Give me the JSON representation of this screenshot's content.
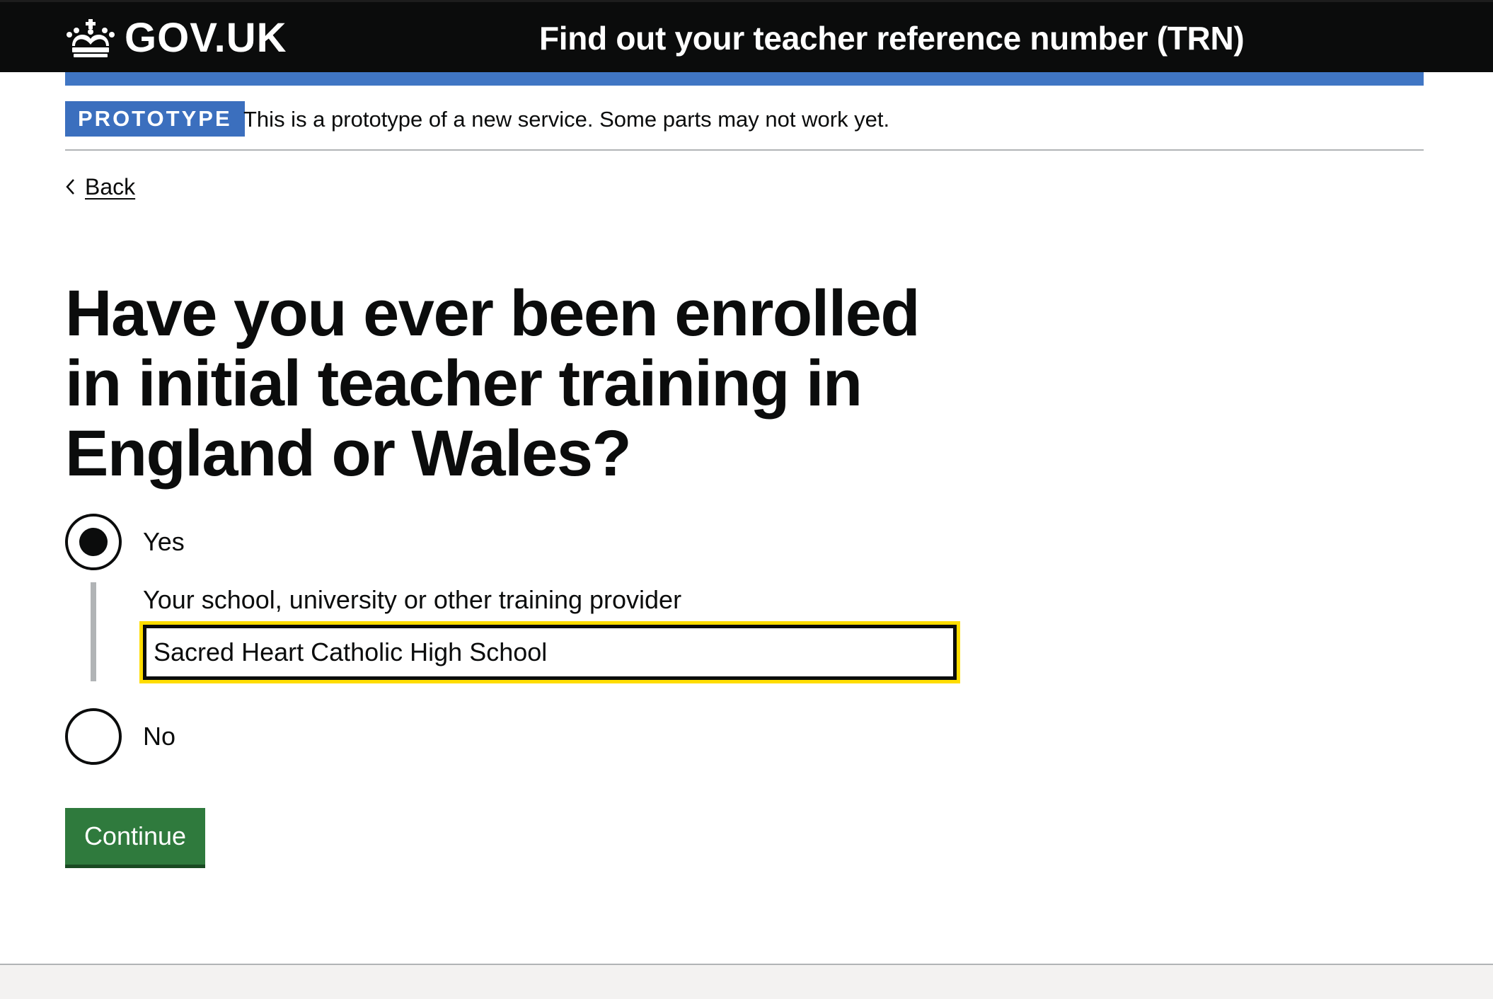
{
  "header": {
    "logo_text": "GOV.UK",
    "service_name": "Find out your teacher reference number (TRN)"
  },
  "phase_banner": {
    "tag": "PROTOTYPE",
    "text": "This is a prototype of a new service. Some parts may not work yet."
  },
  "back_link": {
    "label": "Back"
  },
  "question": {
    "heading": "Have you ever been enrolled in initial teacher training in England or Wales?",
    "options": [
      {
        "label": "Yes",
        "selected": true
      },
      {
        "label": "No",
        "selected": false
      }
    ],
    "conditional": {
      "label": "Your school, university or other training provider",
      "value": "Sacred Heart Catholic High School"
    }
  },
  "continue_button": {
    "label": "Continue"
  },
  "colors": {
    "header_bg": "#0b0c0c",
    "header_bar": "#4076c4",
    "phase_tag": "#3b6fbe",
    "focus": "#ffdd00",
    "button": "#2f7a3d"
  },
  "icons": {
    "logo": "crown-icon",
    "back": "chevron-left-icon"
  }
}
